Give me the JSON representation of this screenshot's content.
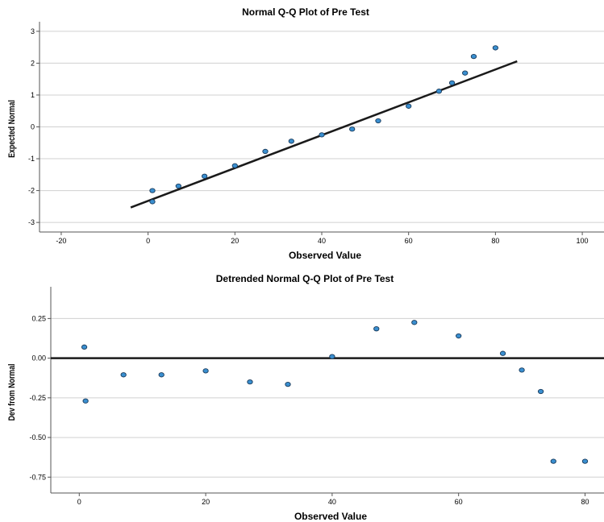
{
  "chart_data": [
    {
      "type": "scatter",
      "title": "Normal Q-Q Plot of Pre Test",
      "xlabel": "Observed Value",
      "ylabel": "Expected Normal",
      "xlim": [
        -25,
        105
      ],
      "ylim": [
        -3.3,
        3.3
      ],
      "x_ticks": [
        -20,
        0,
        20,
        40,
        60,
        80,
        100
      ],
      "y_ticks": [
        3,
        2,
        1,
        0,
        -1,
        -2,
        -3
      ],
      "grid": "horizontal",
      "point_color": "#3a8fd0",
      "line_color": "#1a1a1a",
      "reference_line": {
        "x": [
          -4,
          85
        ],
        "y": [
          -2.53,
          2.06
        ]
      },
      "points": {
        "x": [
          1,
          1,
          7,
          13,
          20,
          27,
          33,
          40,
          47,
          53,
          60,
          67,
          70,
          73,
          75,
          80
        ],
        "y": [
          -2.35,
          -2.0,
          -1.86,
          -1.55,
          -1.22,
          -0.77,
          -0.45,
          -0.25,
          -0.07,
          0.19,
          0.65,
          1.12,
          1.38,
          1.69,
          2.21,
          2.48
        ]
      }
    },
    {
      "type": "scatter",
      "title": "Detrended Normal Q-Q Plot of Pre Test",
      "xlabel": "Observed Value",
      "ylabel": "Dev from Normal",
      "xlim": [
        -4.5,
        83
      ],
      "ylim": [
        -0.85,
        0.45
      ],
      "x_ticks": [
        0,
        20,
        40,
        60,
        80
      ],
      "y_ticks": [
        "0.25",
        "0.00",
        "-0.25",
        "-0.50",
        "-0.75"
      ],
      "grid": "horizontal",
      "point_color": "#3a8fd0",
      "line_color": "#1a1a1a",
      "reference_line": {
        "y": 0
      },
      "points": {
        "x": [
          0.8,
          1,
          7,
          13,
          20,
          27,
          33,
          40,
          47,
          53,
          60,
          67,
          70,
          73,
          75,
          80
        ],
        "y": [
          0.07,
          -0.27,
          -0.105,
          -0.105,
          -0.08,
          -0.15,
          -0.165,
          0.01,
          0.185,
          0.225,
          0.14,
          0.03,
          -0.075,
          -0.21,
          -0.65,
          -0.65
        ]
      }
    }
  ]
}
